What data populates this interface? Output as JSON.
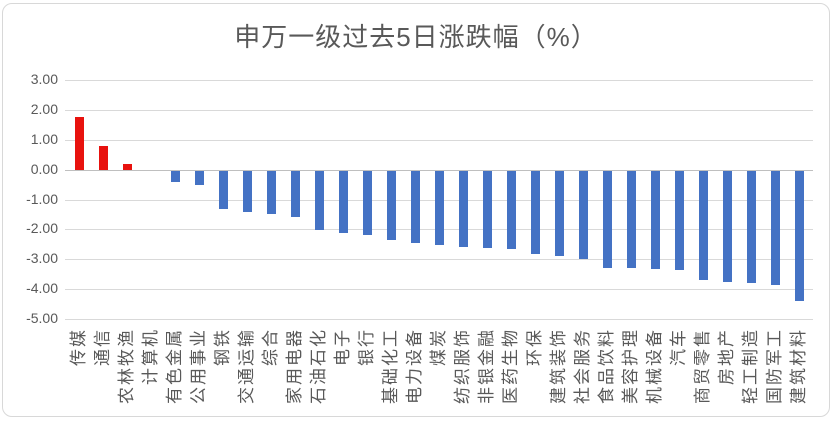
{
  "chart_data": {
    "type": "bar",
    "title": "申万一级过去5日涨跌幅（%）",
    "categories": [
      "传媒",
      "通信",
      "农林牧渔",
      "计算机",
      "有色金属",
      "公用事业",
      "钢铁",
      "交通运输",
      "综合",
      "家用电器",
      "石油石化",
      "电子",
      "银行",
      "基础化工",
      "电力设备",
      "煤炭",
      "纺织服饰",
      "非银金融",
      "医药生物",
      "环保",
      "建筑装饰",
      "社会服务",
      "食品饮料",
      "美容护理",
      "机械设备",
      "汽车",
      "商贸零售",
      "房地产",
      "轻工制造",
      "国防军工",
      "建筑材料"
    ],
    "values": [
      1.76,
      0.8,
      0.18,
      0.0,
      -0.39,
      -0.47,
      -1.27,
      -1.37,
      -1.45,
      -1.54,
      -2.0,
      -2.09,
      -2.17,
      -2.31,
      -2.42,
      -2.48,
      -2.55,
      -2.58,
      -2.63,
      -2.78,
      -2.86,
      -2.97,
      -3.26,
      -3.27,
      -3.29,
      -3.31,
      -3.67,
      -3.72,
      -3.75,
      -3.83,
      -4.37
    ],
    "xlabel": "",
    "ylabel": "",
    "ylim": [
      -5,
      3
    ],
    "y_ticks": [
      "3.00",
      "2.00",
      "1.00",
      "0.00",
      "-1.00",
      "-2.00",
      "-3.00",
      "-4.00",
      "-5.00"
    ],
    "grid": true,
    "legend": "none",
    "positive_color": "#e8120e",
    "negative_color": "#4472c4",
    "gridline_color": "#d9d9d9",
    "axis_line_color": "#bfbfbf",
    "text_color": "#595959"
  }
}
